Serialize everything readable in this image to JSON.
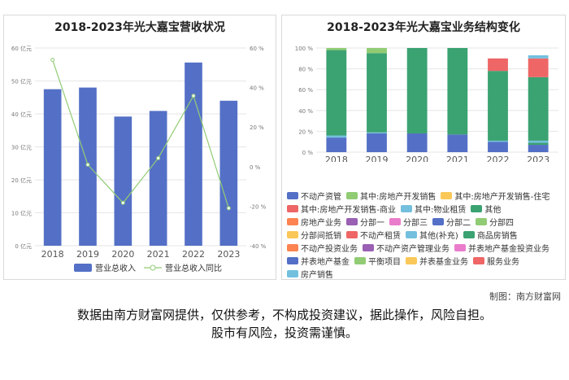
{
  "credit": "制图：南方财富网",
  "disclaimer": [
    "数据由南方财富网提供，仅供参考，不构成投资建议，据此操作，风险自担。",
    "股市有风险，投资需谨慎。"
  ],
  "chart_data": [
    {
      "type": "bar",
      "title": "2018-2023年光大嘉宝营收状况",
      "categories": [
        "2018",
        "2019",
        "2020",
        "2021",
        "2022",
        "2023"
      ],
      "series": [
        {
          "name": "营业总收入",
          "type": "bar",
          "axis": "left",
          "color": "#5470c6",
          "values": [
            47.5,
            48.0,
            39.2,
            40.9,
            55.6,
            44.0
          ]
        },
        {
          "name": "营业总收入同比",
          "type": "line",
          "axis": "right",
          "color": "#91cc75",
          "values": [
            54.0,
            1.0,
            -18.3,
            4.3,
            35.8,
            -21.0
          ]
        }
      ],
      "ylim_left": [
        0,
        60
      ],
      "yticks_left": [
        "0 亿元",
        "10 亿元",
        "20 亿元",
        "30 亿元",
        "40 亿元",
        "50 亿元",
        "60 亿元"
      ],
      "ylim_right": [
        -40,
        60
      ],
      "yticks_right": [
        "-40 %",
        "-20 %",
        "0 %",
        "20 %",
        "40 %",
        "60 %"
      ],
      "grid": true,
      "legend": "bottom"
    },
    {
      "type": "bar",
      "stacked": true,
      "title": "2018-2023年光大嘉宝业务结构变化",
      "categories": [
        "2018",
        "2019",
        "2020",
        "2021",
        "2022",
        "2023"
      ],
      "ylim": [
        0,
        100
      ],
      "yticks": [
        "0 %",
        "20 %",
        "40 %",
        "60 %",
        "80 %",
        "100 %"
      ],
      "series": [
        {
          "name": "不动产资管",
          "color": "#5470c6",
          "values": [
            14,
            18,
            18,
            17,
            10,
            7
          ]
        },
        {
          "name": "其中:房地产开发销售",
          "color": "#91cc75",
          "values": [
            0,
            0,
            0,
            0,
            0,
            0
          ]
        },
        {
          "name": "其中:房地产开发销售-住宅",
          "color": "#fac858",
          "values": [
            0,
            0,
            0,
            0,
            0,
            0
          ]
        },
        {
          "name": "其中:房地产开发销售-商业",
          "color": "#ee6666",
          "values": [
            0,
            0,
            0,
            0,
            0,
            0
          ]
        },
        {
          "name": "其中:物业租赁",
          "color": "#73c0de",
          "values": [
            0,
            0,
            0,
            0,
            0,
            0
          ]
        },
        {
          "name": "其他",
          "color": "#3ba272",
          "values": [
            0,
            0,
            0,
            0,
            0,
            2
          ]
        },
        {
          "name": "房地产业务",
          "color": "#fc8452",
          "values": [
            0,
            0,
            0,
            0,
            0,
            0
          ]
        },
        {
          "name": "分部一",
          "color": "#9a60b4",
          "values": [
            0,
            0,
            0,
            0,
            0,
            0
          ]
        },
        {
          "name": "分部三",
          "color": "#ea7ccc",
          "values": [
            0,
            0,
            0,
            0,
            0,
            0
          ]
        },
        {
          "name": "分部二",
          "color": "#5470c6",
          "values": [
            0,
            0,
            0,
            0,
            0,
            0
          ]
        },
        {
          "name": "分部四",
          "color": "#91cc75",
          "values": [
            0,
            0,
            0,
            0,
            0,
            0
          ]
        },
        {
          "name": "分部间抵销",
          "color": "#fac858",
          "values": [
            0,
            0,
            0,
            0,
            0,
            0
          ]
        },
        {
          "name": "不动产租赁",
          "color": "#ee6666",
          "values": [
            0,
            0,
            0,
            0,
            0,
            0
          ]
        },
        {
          "name": "其他(补充)",
          "color": "#73c0de",
          "values": [
            2,
            1,
            0,
            0,
            1,
            2
          ]
        },
        {
          "name": "商品房销售",
          "color": "#3ba272",
          "values": [
            82,
            76,
            82,
            83,
            67,
            61
          ]
        },
        {
          "name": "不动产投资业务",
          "color": "#fc8452",
          "values": [
            0,
            0,
            0,
            0,
            0,
            0
          ]
        },
        {
          "name": "不动产资产管理业务",
          "color": "#9a60b4",
          "values": [
            0,
            0,
            0,
            0,
            0,
            0
          ]
        },
        {
          "name": "并表地产基金投资业务",
          "color": "#ea7ccc",
          "values": [
            0,
            0,
            0,
            0,
            0,
            0
          ]
        },
        {
          "name": "并表地产基金",
          "color": "#5470c6",
          "values": [
            0,
            0,
            0,
            0,
            0,
            0
          ]
        },
        {
          "name": "平衡项目",
          "color": "#91cc75",
          "values": [
            2,
            5,
            0,
            0,
            0,
            0
          ]
        },
        {
          "name": "并表基金业务",
          "color": "#fac858",
          "values": [
            0,
            0,
            0,
            0,
            0,
            0
          ]
        },
        {
          "name": "服务业务",
          "color": "#ee6666",
          "values": [
            0,
            0,
            0,
            0,
            12,
            18
          ]
        },
        {
          "name": "房产销售",
          "color": "#73c0de",
          "values": [
            0,
            0,
            0,
            0,
            0,
            3
          ]
        }
      ],
      "grid": true,
      "legend": "bottom"
    }
  ],
  "legend_rows_right": [
    [
      0,
      1,
      2
    ],
    [
      3,
      4,
      5
    ],
    [
      6,
      7,
      8,
      9,
      10
    ],
    [
      11,
      12,
      13,
      14
    ],
    [
      15,
      16,
      17
    ],
    [
      18,
      19,
      20,
      21
    ],
    [
      22
    ]
  ]
}
